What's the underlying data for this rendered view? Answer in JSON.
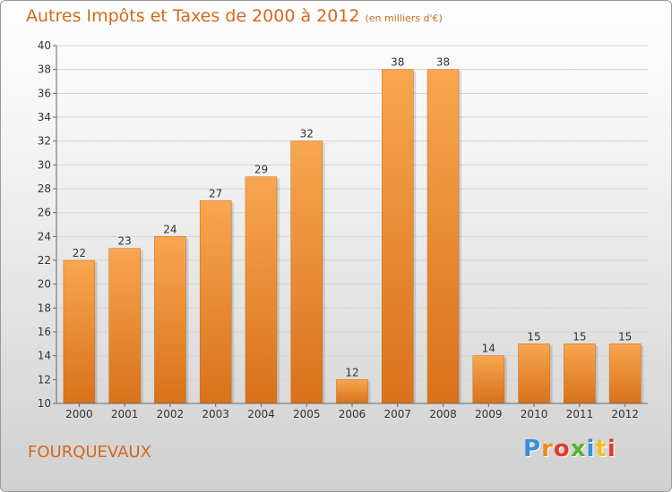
{
  "title": "Autres Impôts et Taxes de 2000 à 2012",
  "subtitle": "(en milliers d'€)",
  "commune": "FOURQUEVAUX",
  "logo": {
    "letters": [
      "P",
      "r",
      "o",
      "x",
      "i",
      "t",
      "i"
    ],
    "colors": [
      "#3a8fd6",
      "#f28a1c",
      "#e23b2e",
      "#5bb031",
      "#3a8fd6",
      "#f2c21c",
      "#e23b2e"
    ]
  },
  "chart_data": {
    "type": "bar",
    "categories": [
      "2000",
      "2001",
      "2002",
      "2003",
      "2004",
      "2005",
      "2006",
      "2007",
      "2008",
      "2009",
      "2010",
      "2011",
      "2012"
    ],
    "values": [
      22,
      23,
      24,
      27,
      29,
      32,
      12,
      38,
      38,
      14,
      15,
      15,
      15
    ],
    "ylim": [
      10,
      40
    ],
    "yticks": [
      10,
      12,
      14,
      16,
      18,
      20,
      22,
      24,
      26,
      28,
      30,
      32,
      34,
      36,
      38,
      40
    ],
    "grid": true,
    "bar_color": "#e8892e"
  }
}
